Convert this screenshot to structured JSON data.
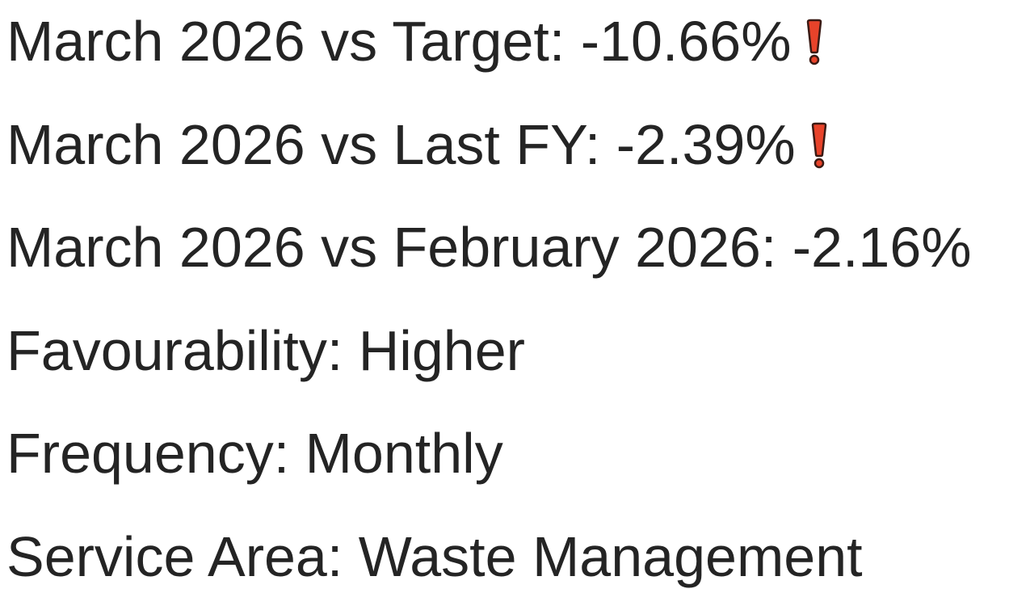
{
  "lines": [
    {
      "text": "March 2026 vs Target: -10.66%",
      "alert": true
    },
    {
      "text": "March 2026 vs Last FY: -2.39%",
      "alert": true
    },
    {
      "text": "March 2026 vs February 2026: -2.16%",
      "alert": false
    },
    {
      "text": "Favourability: Higher",
      "alert": false
    },
    {
      "text": "Frequency: Monthly",
      "alert": false
    },
    {
      "text": "Service Area: Waste Management",
      "alert": false
    }
  ]
}
